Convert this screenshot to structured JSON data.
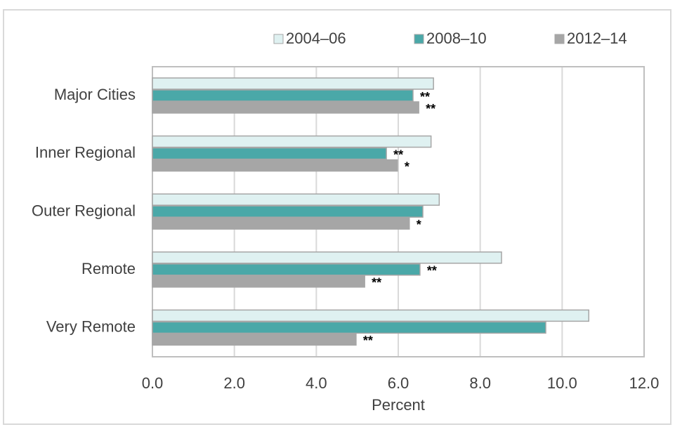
{
  "chart_data": {
    "type": "hbar",
    "categories": [
      "Major Cities",
      "Inner Regional",
      "Outer Regional",
      "Remote",
      "Very Remote"
    ],
    "series": [
      {
        "name": "2004–06",
        "color": "#dff1f1",
        "values": [
          6.86,
          6.8,
          7.0,
          8.52,
          10.65
        ],
        "annotations": [
          null,
          null,
          null,
          null,
          null
        ]
      },
      {
        "name": "2008–10",
        "color": "#4aa8a8",
        "values": [
          6.36,
          5.71,
          6.6,
          6.53,
          9.6
        ],
        "annotations": [
          "**",
          "**",
          null,
          "**",
          null
        ]
      },
      {
        "name": "2012–14",
        "color": "#a6a6a6",
        "values": [
          6.5,
          5.98,
          6.27,
          5.18,
          4.97
        ],
        "annotations": [
          "**",
          "*",
          "*",
          "**",
          "**"
        ]
      }
    ],
    "xlabel": "Percent",
    "xlim": [
      0,
      12
    ],
    "xticks": [
      {
        "value": 0,
        "label": "0.0"
      },
      {
        "value": 2,
        "label": "2.0"
      },
      {
        "value": 4,
        "label": "4.0"
      },
      {
        "value": 6,
        "label": "6.0"
      },
      {
        "value": 8,
        "label": "8.0"
      },
      {
        "value": 10,
        "label": "10.0"
      },
      {
        "value": 12,
        "label": "12.0"
      }
    ],
    "grid": true,
    "legend": "top"
  }
}
